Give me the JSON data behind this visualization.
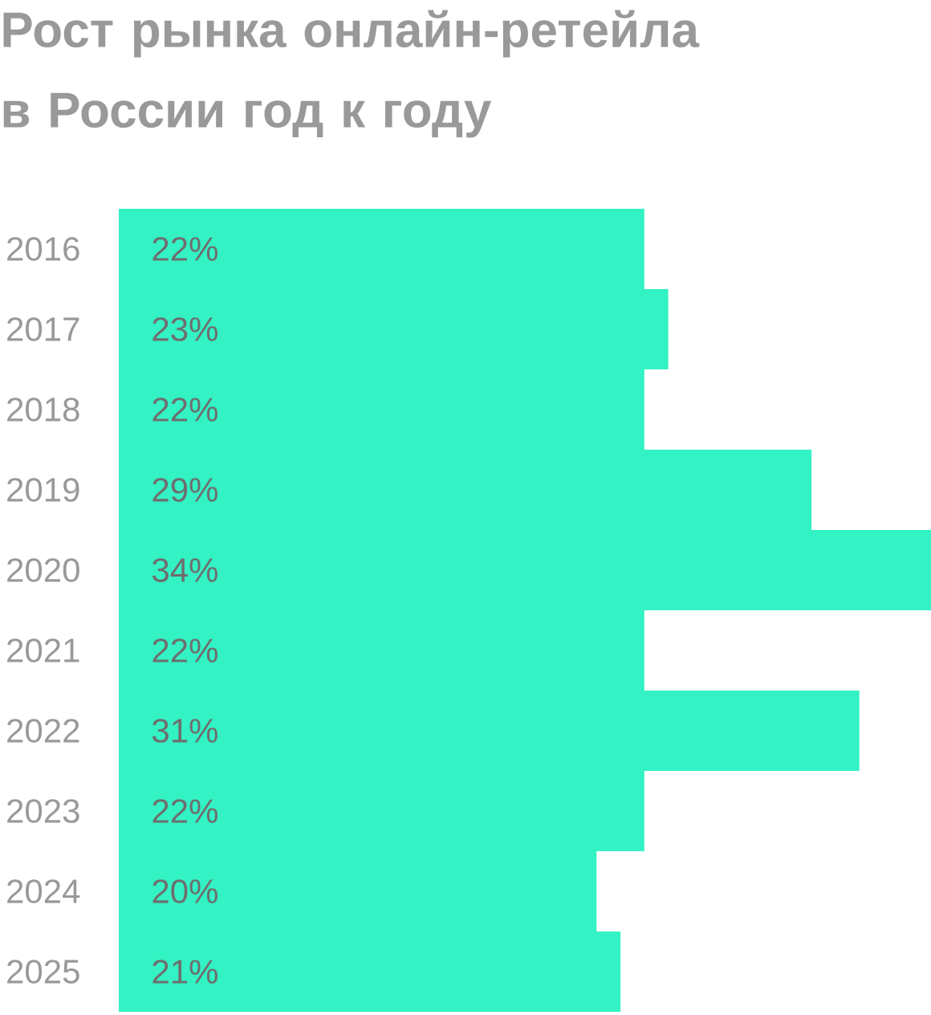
{
  "chart_data": {
    "type": "bar",
    "orientation": "horizontal",
    "title": "Рост рынка онлайн-ретейла в России год к году",
    "categories": [
      "2016",
      "2017",
      "2018",
      "2019",
      "2020",
      "2021",
      "2022",
      "2023",
      "2024",
      "2025"
    ],
    "values": [
      22,
      23,
      22,
      29,
      34,
      22,
      31,
      22,
      20,
      21
    ],
    "value_labels": [
      "22%",
      "23%",
      "22%",
      "29%",
      "34%",
      "22%",
      "31%",
      "22%",
      "20%",
      "21%"
    ],
    "color": "#33f2c4"
  }
}
